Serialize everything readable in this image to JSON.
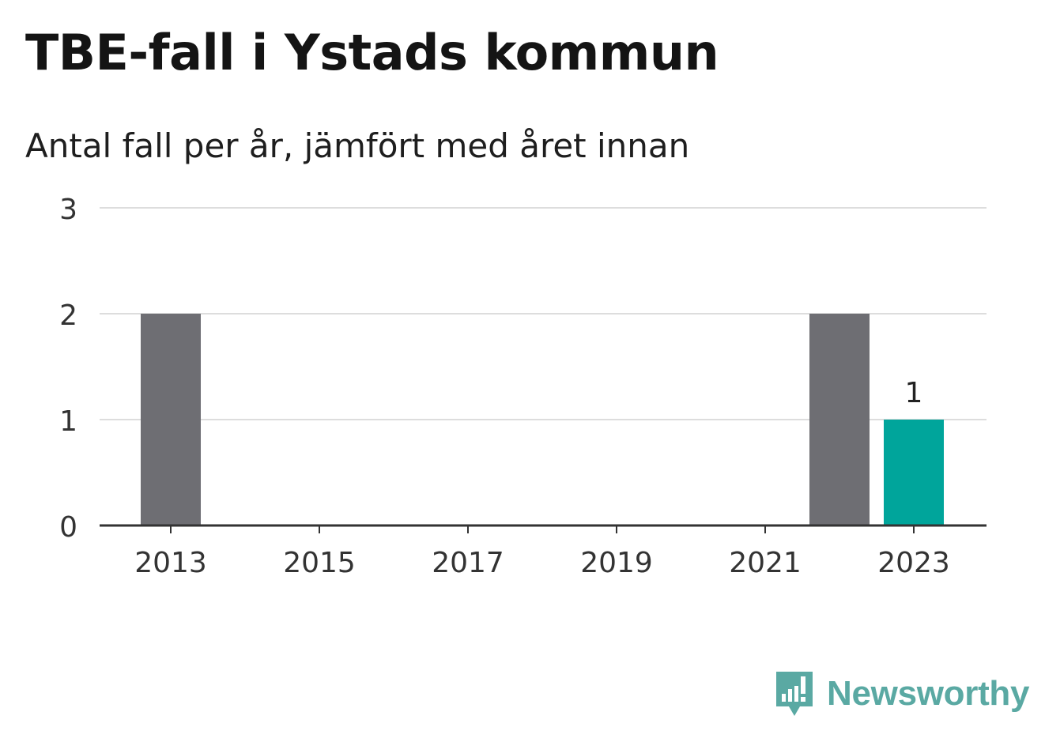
{
  "title": "TBE-fall i Ystads kommun",
  "subtitle": "Antal fall per år, jämfört med året innan",
  "brand": {
    "name": "Newsworthy",
    "icon": "newsworthy-logo-icon",
    "color": "#5aa9a3"
  },
  "chart_data": {
    "type": "bar",
    "title": "TBE-fall i Ystads kommun",
    "subtitle": "Antal fall per år, jämfört med året innan",
    "categories": [
      "2013",
      "2014",
      "2015",
      "2016",
      "2017",
      "2018",
      "2019",
      "2020",
      "2021",
      "2022",
      "2023"
    ],
    "values": [
      2,
      0,
      0,
      0,
      0,
      0,
      0,
      0,
      0,
      2,
      1
    ],
    "xticks": [
      "2013",
      "2015",
      "2017",
      "2019",
      "2021",
      "2023"
    ],
    "yticks": [
      0,
      1,
      2,
      3
    ],
    "ylim": [
      0,
      3
    ],
    "grid": true,
    "legend": "none",
    "data_labels": [
      {
        "category": "2023",
        "text": "1"
      }
    ],
    "colors": {
      "default": "#6e6e73",
      "highlight": "#00a59b",
      "highlight_category": "2023",
      "grid": "#dddddd",
      "axis": "#333333"
    }
  }
}
